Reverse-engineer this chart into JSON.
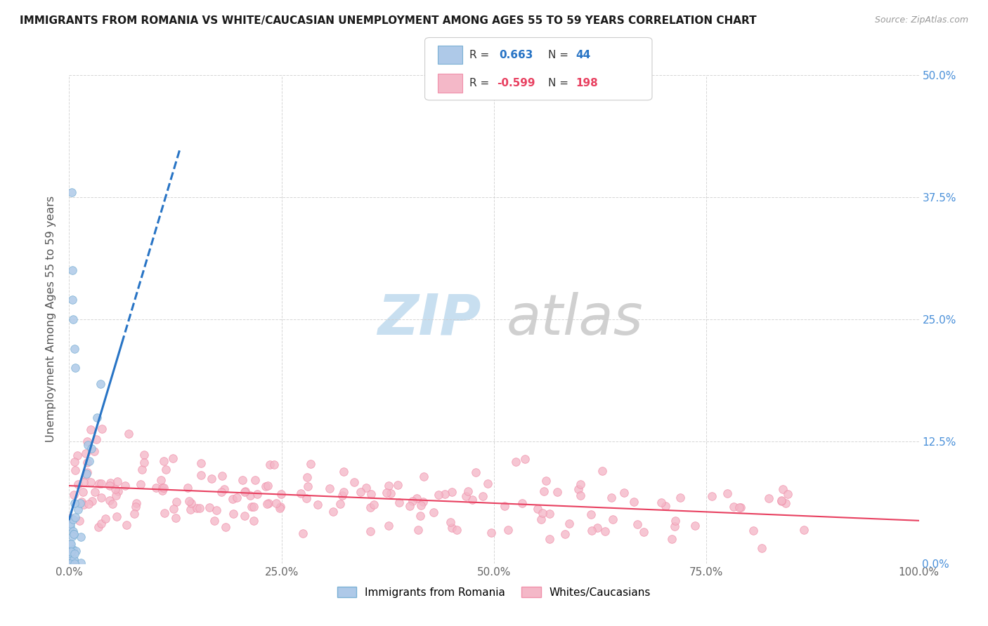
{
  "title": "IMMIGRANTS FROM ROMANIA VS WHITE/CAUCASIAN UNEMPLOYMENT AMONG AGES 55 TO 59 YEARS CORRELATION CHART",
  "source": "Source: ZipAtlas.com",
  "ylabel": "Unemployment Among Ages 55 to 59 years",
  "blue_r": "0.663",
  "blue_n": "44",
  "pink_r": "-0.599",
  "pink_n": "198",
  "blue_marker_color": "#aec9e8",
  "blue_edge_color": "#7ab0d4",
  "pink_marker_color": "#f4b8c8",
  "pink_edge_color": "#f090aa",
  "trend_blue": "#2874c5",
  "trend_pink": "#e84060",
  "legend_label_blue": "Immigrants from Romania",
  "legend_label_pink": "Whites/Caucasians",
  "xlim": [
    0,
    1.0
  ],
  "ylim": [
    0,
    0.5
  ],
  "xticks": [
    0,
    0.25,
    0.5,
    0.75,
    1.0
  ],
  "xtick_labels": [
    "0.0%",
    "25.0%",
    "50.0%",
    "75.0%",
    "100.0%"
  ],
  "yticks": [
    0,
    0.125,
    0.25,
    0.375,
    0.5
  ],
  "ytick_labels": [
    "0.0%",
    "12.5%",
    "25.0%",
    "37.5%",
    "50.0%"
  ],
  "ytick_color": "#4a90d9",
  "background_color": "#ffffff",
  "grid_color": "#cccccc",
  "watermark_zip_color": "#c8dff0",
  "watermark_atlas_color": "#d0d0d0"
}
